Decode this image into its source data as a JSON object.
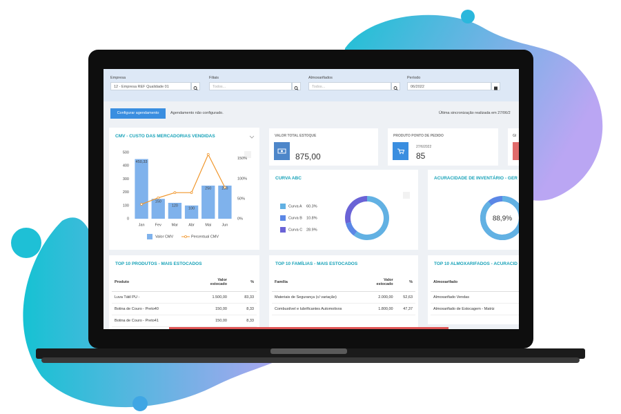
{
  "filters": {
    "empresa": {
      "label": "Empresa",
      "value": "12 - Empresa REF Qualidade 01"
    },
    "filiais": {
      "label": "Filiais",
      "placeholder": "Todos..."
    },
    "almoxarifados": {
      "label": "Almoxarifados",
      "placeholder": "Todos..."
    },
    "periodo": {
      "label": "Período",
      "value": "06/2022"
    }
  },
  "toolbar": {
    "button": "Configurar agendamento",
    "status": "Agendamento não configurado.",
    "sync": "Última sincronização realizada em 27/06/2"
  },
  "kpis": [
    {
      "label": "VALOR TOTAL ESTOQUE",
      "value": "875,00"
    },
    {
      "label": "PRODUTO PONTO DE PEDIDO",
      "date": "27/6/2022",
      "value": "85"
    },
    {
      "label": "GI"
    }
  ],
  "chart_data": [
    {
      "type": "combo",
      "title": "CMV - CUSTO DAS MERCADORIAS VENDIDAS",
      "categories": [
        "Jan",
        "Fev",
        "Mar",
        "Abr",
        "Mai",
        "Jun"
      ],
      "series": [
        {
          "name": "Valor CMV",
          "type": "bar",
          "color": "#7fb2ec",
          "values": [
            450.33,
            150,
            120,
            100,
            250,
            250
          ],
          "value_labels": [
            "450,33",
            "150",
            "120",
            "100",
            "250",
            "250"
          ]
        },
        {
          "name": "Percentual CMV",
          "type": "line",
          "axis": "y2",
          "color": "#f0962b",
          "values": [
            36,
            52,
            65,
            65,
            160,
            78
          ]
        }
      ],
      "ylim": [
        0,
        500
      ],
      "yticks": [
        0,
        100,
        200,
        300,
        400,
        500
      ],
      "y2lim": [
        0,
        165
      ],
      "y2ticks": [
        {
          "value": 0,
          "label": "0%"
        },
        {
          "value": 50,
          "label": "50%"
        },
        {
          "value": 100,
          "label": "100%"
        },
        {
          "value": 150,
          "label": "150%"
        }
      ],
      "grid": false
    },
    {
      "type": "donut",
      "title": "CURVA ABC",
      "categories": [
        "Curva A",
        "Curva B",
        "Curva C"
      ],
      "values": [
        60.3,
        10.8,
        28.9
      ],
      "value_labels": [
        "60.3%",
        "10.8%",
        "28.9%"
      ],
      "colors": [
        "#62b1e3",
        "#5b87e6",
        "#6a63d6"
      ]
    },
    {
      "type": "gauge",
      "title": "ACURACIDADE DE INVENTÁRIO - GER",
      "values": [
        88.9
      ],
      "value_labels": [
        "88,9%"
      ],
      "color": "#62b1e3",
      "track_color": "#5b87e6"
    }
  ],
  "tables": [
    {
      "title": "TOP 10 PRODUTOS - MAIS ESTOCADOS",
      "columns": [
        "Produto",
        "Valor estocado",
        "%"
      ],
      "rows": [
        [
          "Luva Tátil PU -",
          "1.500,00",
          "83,33"
        ],
        [
          "Botina de Couro - Preto40",
          "150,00",
          "8,33"
        ],
        [
          "Botina de Couro - Preto41",
          "150,00",
          "8,33"
        ]
      ]
    },
    {
      "title": "TOP 10 FAMÍLIAS - MAIS ESTOCADOS",
      "columns": [
        "Família",
        "Valor estocado",
        "%"
      ],
      "rows": [
        [
          "Materiais de Segurança (c/ variação)",
          "2.000,00",
          "52,63"
        ],
        [
          "Combustível e lubrificantes Automotivos",
          "1.800,00",
          "47,37"
        ]
      ]
    },
    {
      "title": "TOP 10 ALMOXARIFADOS - ACURACID",
      "columns": [
        "Almoxarifado"
      ],
      "rows": [
        [
          "Almoxarifado Vendas"
        ],
        [
          "Almoxarifado de Estocagem - Matriz"
        ]
      ]
    }
  ]
}
